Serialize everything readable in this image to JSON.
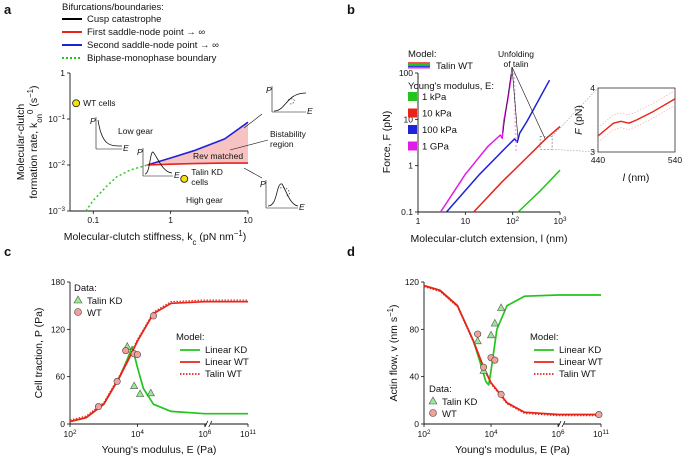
{
  "colors": {
    "cusp": "#000000",
    "red": "#e8231a",
    "blue": "#1f22d8",
    "green": "#22c51b",
    "magenta": "#e11ae8",
    "yellow": "#f5e10a",
    "pink": "#f6c2c2",
    "salmon": "#f2a19a",
    "lightgreen": "#9be892",
    "gray": "#8a8a8a"
  },
  "chart_data": [
    {
      "panel": "a",
      "type": "line",
      "panel_label": "a",
      "xlabel": "Molecular-clutch stiffness, k",
      "xlabel_sub": "c",
      "xlabel_unit": " (pN nm",
      "xlabel_exp": "−1",
      "ylabel_line1": "Molecular-clutch",
      "ylabel_line2": "formation rate, k",
      "ylabel_sub": "on",
      "ylabel_sup": "0",
      "ylabel_unit": " (s",
      "ylabel_exp": "−1",
      "xscale": "log",
      "yscale": "log",
      "xlim": [
        0.05,
        10
      ],
      "ylim": [
        0.001,
        1
      ],
      "xticks": [
        {
          "v": 0.1,
          "label": "0.1"
        },
        {
          "v": 1,
          "label": "1"
        },
        {
          "v": 10,
          "label": "10"
        }
      ],
      "yticks": [
        {
          "v": 0.001,
          "label": "10",
          "exp": "−3"
        },
        {
          "v": 0.01,
          "label": "10",
          "exp": "−2"
        },
        {
          "v": 0.1,
          "label": "10",
          "exp": "−1"
        },
        {
          "v": 1,
          "label": "1",
          "exp": ""
        }
      ],
      "legend_title": "Bifurcations/boundaries:",
      "legend": [
        {
          "label": "Cusp catastrophe",
          "color": "#000000",
          "style": "solid"
        },
        {
          "label": "First saddle-node point → ∞",
          "color": "#e8231a",
          "style": "solid"
        },
        {
          "label": "Second saddle-node point → ∞",
          "color": "#1f22d8",
          "style": "solid"
        },
        {
          "label": "Biphase-monophase boundary",
          "color": "#22c51b",
          "style": "dotted"
        }
      ],
      "series": [
        {
          "name": "Second saddle-node",
          "x": [
            0.5,
            1,
            2,
            5,
            10
          ],
          "y": [
            0.01,
            0.0142,
            0.0205,
            0.037,
            0.085
          ]
        },
        {
          "name": "First saddle-node",
          "x": [
            0.5,
            1,
            2,
            5,
            10
          ],
          "y": [
            0.01,
            0.0104,
            0.0107,
            0.011,
            0.011
          ]
        },
        {
          "name": "Biphase-monophase boundary",
          "x": [
            0.08,
            0.1,
            0.15,
            0.2,
            0.3,
            0.5
          ],
          "y": [
            0.001,
            0.0017,
            0.0035,
            0.0055,
            0.0078,
            0.01
          ]
        }
      ],
      "points": [
        {
          "label": "WT cells",
          "x": 0.06,
          "y": 0.22
        },
        {
          "label": "Talin KD\ncells",
          "x": 1.5,
          "y": 0.005
        }
      ],
      "annotations": [
        "Low gear",
        "High gear",
        "Rev matched",
        "Bistability\nregion"
      ],
      "inset_axes": [
        "P",
        "E"
      ]
    },
    {
      "panel": "b",
      "type": "line",
      "panel_label": "b",
      "xlabel": "Molecular-clutch extension, l",
      "xlabel_unit": " (nm)",
      "ylabel": "Force, F (pN)",
      "xscale": "log",
      "yscale": "log",
      "xlim": [
        1,
        1000
      ],
      "ylim": [
        0.1,
        100
      ],
      "xticks": [
        {
          "v": 1,
          "label": "1",
          "exp": ""
        },
        {
          "v": 10,
          "label": "10",
          "exp": ""
        },
        {
          "v": 100,
          "label": "10",
          "exp": "2"
        },
        {
          "v": 1000,
          "label": "10",
          "exp": "3"
        }
      ],
      "yticks": [
        {
          "v": 0.1,
          "label": "0.1"
        },
        {
          "v": 1,
          "label": "1"
        },
        {
          "v": 10,
          "label": "10"
        },
        {
          "v": 100,
          "label": "100"
        }
      ],
      "model_title": "Model:",
      "model_label": "Talin WT",
      "legend_title": "Young's modulus, E:",
      "legend": [
        {
          "label": "1 kPa",
          "color": "#22c51b"
        },
        {
          "label": "10 kPa",
          "color": "#e8231a"
        },
        {
          "label": "100 kPa",
          "color": "#1f22d8"
        },
        {
          "label": "1 GPa",
          "color": "#e11ae8"
        }
      ],
      "annotation": "Unfolding\nof talin",
      "series": [
        {
          "name": "1 GPa",
          "x": [
            3,
            10,
            30,
            55,
            60,
            65,
            80,
            95
          ],
          "y": [
            0.1,
            0.65,
            2.6,
            4.6,
            3.9,
            9,
            30,
            95
          ]
        },
        {
          "name": "100 kPa",
          "x": [
            4,
            20,
            70,
            110,
            125,
            140,
            200,
            600
          ],
          "y": [
            0.1,
            0.65,
            2.4,
            3.8,
            3.2,
            5,
            9,
            70
          ]
        },
        {
          "name": "10 kPa",
          "x": [
            15,
            60,
            200,
            500,
            1000
          ],
          "y": [
            0.1,
            0.45,
            1.5,
            3.8,
            7
          ]
        },
        {
          "name": "1 kPa",
          "x": [
            130,
            400,
            1000
          ],
          "y": [
            0.1,
            0.3,
            0.8
          ]
        }
      ],
      "inset": {
        "xlabel": "l",
        "xlabel_unit": " (nm)",
        "ylabel": "F",
        "ylabel_unit": " (pN)",
        "xlim": [
          440,
          540
        ],
        "ylim": [
          3,
          4
        ],
        "xticks": [
          {
            "v": 440,
            "label": "440"
          },
          {
            "v": 540,
            "label": "540"
          }
        ],
        "yticks": [
          {
            "v": 3,
            "label": "3"
          },
          {
            "v": 4,
            "label": "4"
          }
        ],
        "series": [
          {
            "name": "10 kPa",
            "x": [
              440,
              460,
              470,
              480,
              490,
              510,
              540
            ],
            "y": [
              3.25,
              3.45,
              3.48,
              3.45,
              3.5,
              3.62,
              3.83
            ]
          }
        ]
      }
    },
    {
      "panel": "c",
      "type": "line",
      "panel_label": "c",
      "xlabel": "Young's modulus, E (Pa)",
      "ylabel": "Cell traction, P (Pa)",
      "xscale": "log",
      "yscale": "linear",
      "xlim": [
        100,
        100000000000
      ],
      "ylim": [
        0,
        180
      ],
      "xticks": [
        {
          "v": 100,
          "label": "10",
          "exp": "2"
        },
        {
          "v": 10000,
          "label": "10",
          "exp": "4"
        },
        {
          "v": 1000000,
          "label": "10",
          "exp": "6"
        },
        {
          "v": 100000000000,
          "label": "10",
          "exp": "11"
        }
      ],
      "yticks": [
        {
          "v": 0,
          "label": "0"
        },
        {
          "v": 60,
          "label": "60"
        },
        {
          "v": 120,
          "label": "120"
        },
        {
          "v": 180,
          "label": "180"
        }
      ],
      "data_title": "Data:",
      "model_title": "Model:",
      "legend_data": [
        {
          "label": "Talin KD",
          "marker": "triangle",
          "color": "#9be892"
        },
        {
          "label": "WT",
          "marker": "circle",
          "color": "#f2a19a"
        }
      ],
      "legend_model": [
        {
          "label": "Linear KD",
          "color": "#22c51b",
          "style": "solid"
        },
        {
          "label": "Linear WT",
          "color": "#e8231a",
          "style": "solid"
        },
        {
          "label": "Talin WT",
          "color": "#e8231a",
          "style": "dotted"
        }
      ],
      "series": [
        {
          "name": "Linear WT",
          "x": [
            100,
            300,
            1000,
            3000,
            6000,
            10000,
            30000,
            100000,
            1000000,
            100000000000
          ],
          "y": [
            3,
            8,
            25,
            60,
            85,
            105,
            140,
            153,
            155,
            155
          ]
        },
        {
          "name": "Linear KD",
          "x": [
            100,
            300,
            1000,
            3000,
            5000,
            7000,
            10000,
            15000,
            30000,
            100000,
            1000000,
            100000000000
          ],
          "y": [
            3,
            8,
            25,
            60,
            82,
            98,
            72,
            45,
            25,
            16,
            13,
            13
          ]
        }
      ],
      "data_kd": [
        {
          "x": 5000,
          "y": 98
        },
        {
          "x": 8000,
          "y": 48
        },
        {
          "x": 12000,
          "y": 38
        },
        {
          "x": 25000,
          "y": 39
        }
      ],
      "data_wt": [
        {
          "x": 700,
          "y": 22
        },
        {
          "x": 2500,
          "y": 54
        },
        {
          "x": 4500,
          "y": 93
        },
        {
          "x": 8000,
          "y": 89
        },
        {
          "x": 10000,
          "y": 88
        },
        {
          "x": 30000,
          "y": 137
        }
      ]
    },
    {
      "panel": "d",
      "type": "line",
      "panel_label": "d",
      "xlabel": "Young's modulus, E (Pa)",
      "ylabel": "Actin flow, v",
      "ylabel_unit": " (nm s",
      "ylabel_exp": "−1",
      "xscale": "log",
      "yscale": "linear",
      "xlim": [
        100,
        100000000000
      ],
      "ylim": [
        0,
        120
      ],
      "xticks": [
        {
          "v": 100,
          "label": "10",
          "exp": "2"
        },
        {
          "v": 10000,
          "label": "10",
          "exp": "4"
        },
        {
          "v": 1000000,
          "label": "10",
          "exp": "6"
        },
        {
          "v": 100000000000,
          "label": "10",
          "exp": "11"
        }
      ],
      "yticks": [
        {
          "v": 0,
          "label": "0"
        },
        {
          "v": 40,
          "label": "40"
        },
        {
          "v": 80,
          "label": "80"
        },
        {
          "v": 120,
          "label": "120"
        }
      ],
      "data_title": "Data:",
      "model_title": "Model:",
      "legend_data": [
        {
          "label": "Talin KD",
          "marker": "triangle",
          "color": "#9be892"
        },
        {
          "label": "WT",
          "marker": "circle",
          "color": "#f2a19a"
        }
      ],
      "legend_model": [
        {
          "label": "Linear KD",
          "color": "#22c51b",
          "style": "solid"
        },
        {
          "label": "Linear WT",
          "color": "#e8231a",
          "style": "solid"
        },
        {
          "label": "Talin WT",
          "color": "#e8231a",
          "style": "dotted"
        }
      ],
      "series": [
        {
          "name": "Linear WT",
          "x": [
            100,
            300,
            1000,
            3000,
            6000,
            10000,
            30000,
            100000,
            1000000,
            100000000000
          ],
          "y": [
            117,
            113,
            100,
            70,
            48,
            35,
            18,
            10,
            8,
            8
          ]
        },
        {
          "name": "Linear KD",
          "x": [
            100,
            300,
            1000,
            3000,
            5000,
            7000,
            8500,
            10000,
            15000,
            30000,
            100000,
            1000000,
            100000000000
          ],
          "y": [
            117,
            113,
            100,
            70,
            50,
            36,
            33,
            45,
            80,
            100,
            108,
            109,
            109
          ]
        }
      ],
      "data_kd": [
        {
          "x": 4000,
          "y": 70
        },
        {
          "x": 6000,
          "y": 45
        },
        {
          "x": 10000,
          "y": 75
        },
        {
          "x": 13000,
          "y": 85
        },
        {
          "x": 20000,
          "y": 98
        }
      ],
      "data_wt": [
        {
          "x": 4000,
          "y": 76
        },
        {
          "x": 6000,
          "y": 48
        },
        {
          "x": 10000,
          "y": 56
        },
        {
          "x": 13000,
          "y": 54
        },
        {
          "x": 20000,
          "y": 25
        },
        {
          "x": 50000000000,
          "y": 8
        }
      ]
    }
  ]
}
